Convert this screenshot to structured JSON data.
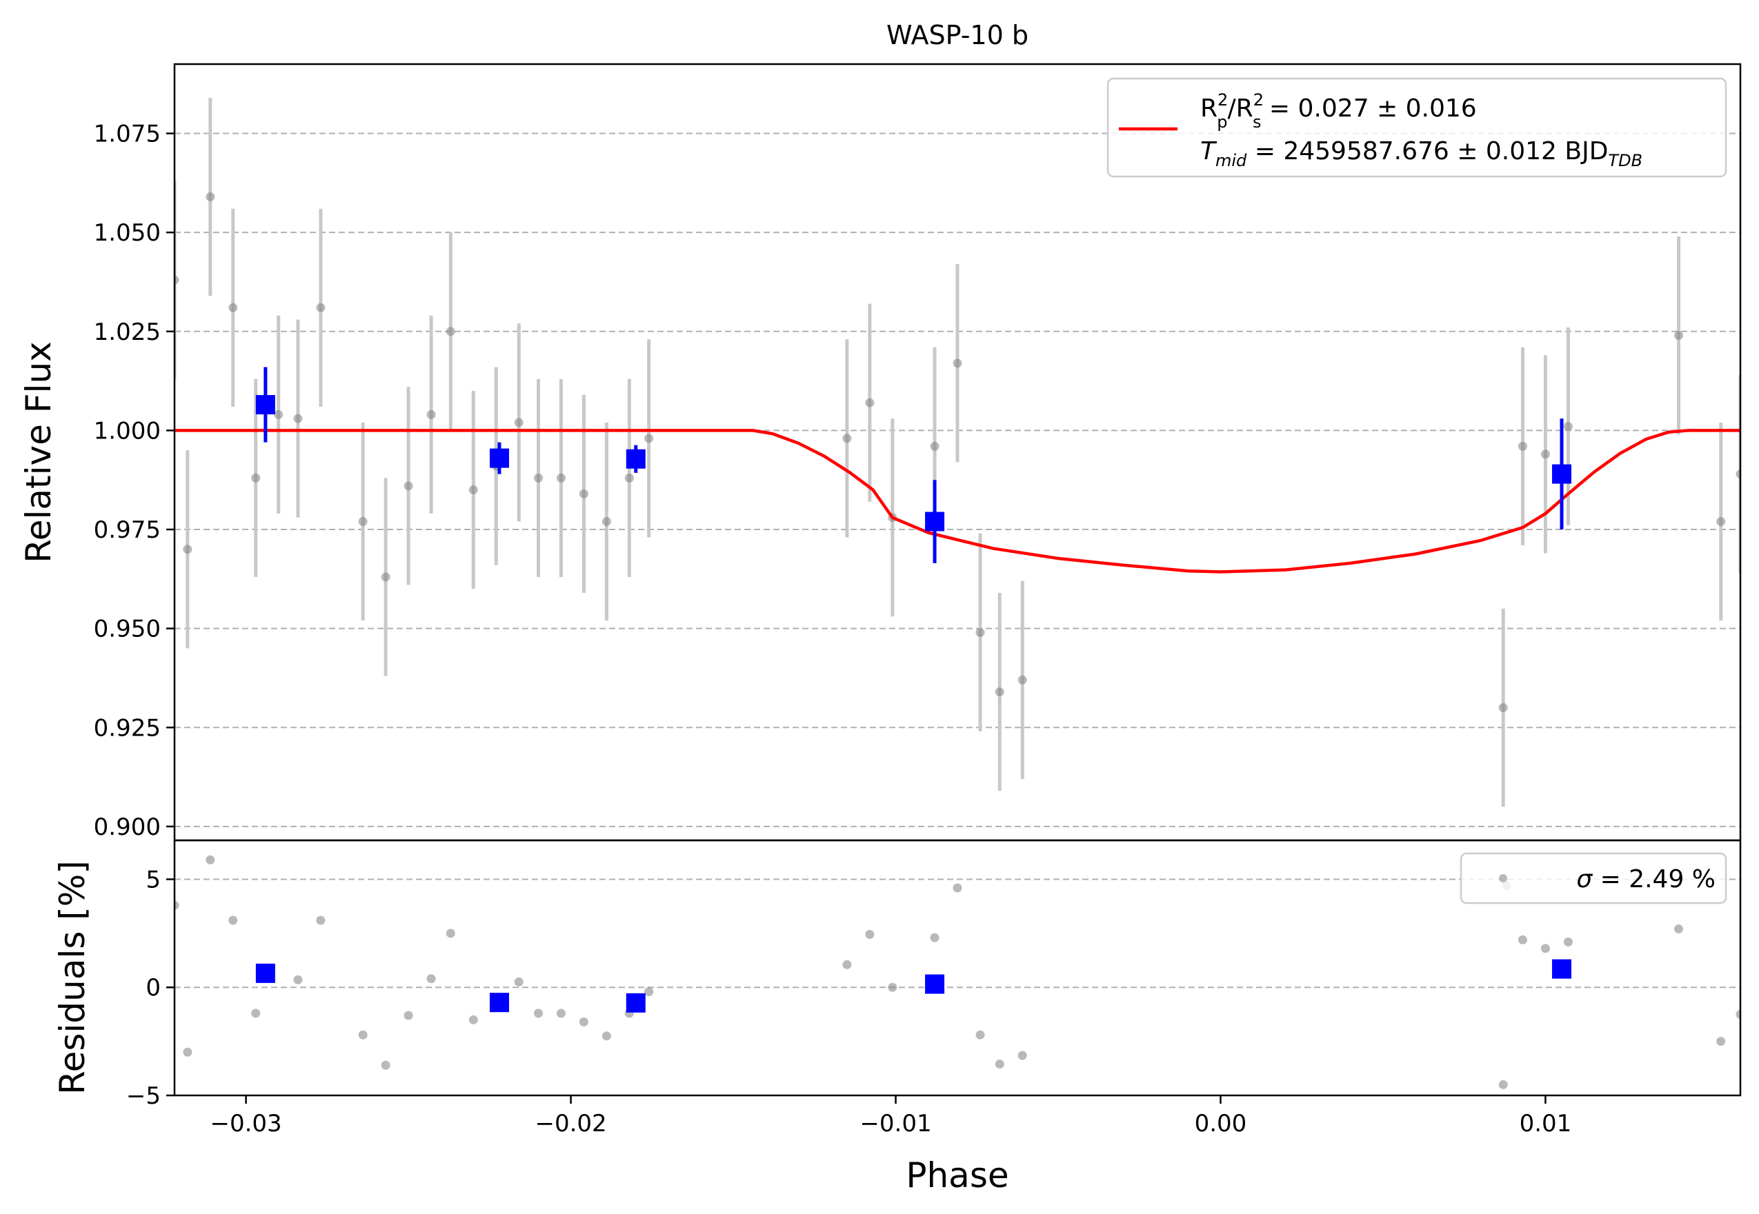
{
  "chart_data": [
    {
      "type": "scatter",
      "panel": "flux",
      "title": "WASP-10 b",
      "xlabel": "Phase",
      "ylabel": "Relative Flux",
      "xlim": [
        -0.0322,
        0.016
      ],
      "ylim": [
        0.8965,
        1.0925
      ],
      "xticks": [
        -0.03,
        -0.02,
        -0.01,
        0.0,
        0.01
      ],
      "xtick_labels": [
        "−0.03",
        "−0.02",
        "−0.01",
        "0.00",
        "0.01"
      ],
      "yticks": [
        0.9,
        0.925,
        0.95,
        0.975,
        1.0,
        1.025,
        1.05,
        1.075
      ],
      "ytick_labels": [
        "0.900",
        "0.925",
        "0.950",
        "0.975",
        "1.000",
        "1.025",
        "1.050",
        "1.075"
      ],
      "grid": "horizontal-dashed",
      "legend_placement": "top-right",
      "legend": {
        "line1": {
          "base": "R",
          "sup1": "2",
          "sub1": "p",
          "sep": "/R",
          "sup2": "2",
          "sub2": "s",
          "value": " = 0.027 ± 0.016"
        },
        "line2": {
          "base": "T",
          "sub": "mid",
          "value": " = 2459587.676 ± 0.012 BJD",
          "unit_sub": "TDB"
        }
      },
      "colors": {
        "raw": "#808080",
        "raw_err": "#c8c8c8",
        "binned": "#0000ff",
        "model": "#ff0000",
        "grid": "#b0b0b0"
      },
      "raw": [
        {
          "x": -0.0322,
          "y": 1.038,
          "err": 0.025
        },
        {
          "x": -0.0318,
          "y": 0.97,
          "err": 0.025
        },
        {
          "x": -0.0311,
          "y": 1.059,
          "err": 0.025
        },
        {
          "x": -0.0304,
          "y": 1.031,
          "err": 0.025
        },
        {
          "x": -0.0297,
          "y": 0.988,
          "err": 0.025
        },
        {
          "x": -0.029,
          "y": 1.004,
          "err": 0.025
        },
        {
          "x": -0.0284,
          "y": 1.003,
          "err": 0.025
        },
        {
          "x": -0.0277,
          "y": 1.031,
          "err": 0.025
        },
        {
          "x": -0.0264,
          "y": 0.977,
          "err": 0.025
        },
        {
          "x": -0.0257,
          "y": 0.963,
          "err": 0.025
        },
        {
          "x": -0.025,
          "y": 0.986,
          "err": 0.025
        },
        {
          "x": -0.0243,
          "y": 1.004,
          "err": 0.025
        },
        {
          "x": -0.0237,
          "y": 1.025,
          "err": 0.025
        },
        {
          "x": -0.023,
          "y": 0.985,
          "err": 0.025
        },
        {
          "x": -0.0223,
          "y": 0.991,
          "err": 0.025
        },
        {
          "x": -0.0216,
          "y": 1.002,
          "err": 0.025
        },
        {
          "x": -0.021,
          "y": 0.988,
          "err": 0.025
        },
        {
          "x": -0.0203,
          "y": 0.988,
          "err": 0.025
        },
        {
          "x": -0.0196,
          "y": 0.984,
          "err": 0.025
        },
        {
          "x": -0.0189,
          "y": 0.977,
          "err": 0.025
        },
        {
          "x": -0.0182,
          "y": 0.988,
          "err": 0.025
        },
        {
          "x": -0.0176,
          "y": 0.998,
          "err": 0.025
        },
        {
          "x": -0.0115,
          "y": 0.998,
          "err": 0.025
        },
        {
          "x": -0.0108,
          "y": 1.007,
          "err": 0.025
        },
        {
          "x": -0.0101,
          "y": 0.978,
          "err": 0.025
        },
        {
          "x": -0.0088,
          "y": 0.996,
          "err": 0.025
        },
        {
          "x": -0.0081,
          "y": 1.017,
          "err": 0.025
        },
        {
          "x": -0.0074,
          "y": 0.949,
          "err": 0.025
        },
        {
          "x": -0.0068,
          "y": 0.934,
          "err": 0.025
        },
        {
          "x": -0.0061,
          "y": 0.937,
          "err": 0.025
        },
        {
          "x": 0.0087,
          "y": 0.93,
          "err": 0.025
        },
        {
          "x": 0.0093,
          "y": 0.996,
          "err": 0.025
        },
        {
          "x": 0.01,
          "y": 0.994,
          "err": 0.025
        },
        {
          "x": 0.0107,
          "y": 1.001,
          "err": 0.025
        },
        {
          "x": 0.0141,
          "y": 1.024,
          "err": 0.025
        },
        {
          "x": 0.0154,
          "y": 0.977,
          "err": 0.025
        },
        {
          "x": 0.016,
          "y": 0.989,
          "err": 0.025
        }
      ],
      "binned": [
        {
          "x": -0.0294,
          "y": 1.0065,
          "err": 0.0095
        },
        {
          "x": -0.0222,
          "y": 0.993,
          "err": 0.004
        },
        {
          "x": -0.018,
          "y": 0.9928,
          "err": 0.0035
        },
        {
          "x": -0.0088,
          "y": 0.977,
          "err": 0.0105
        },
        {
          "x": 0.0105,
          "y": 0.989,
          "err": 0.014
        }
      ],
      "model": {
        "name": "transit model",
        "x": [
          -0.0322,
          -0.0144,
          -0.0138,
          -0.013,
          -0.0122,
          -0.0114,
          -0.0107,
          -0.0101,
          -0.009,
          -0.007,
          -0.005,
          -0.003,
          -0.001,
          0.0,
          0.002,
          0.004,
          0.006,
          0.008,
          0.0093,
          0.01,
          0.0107,
          0.0115,
          0.0123,
          0.0131,
          0.0138,
          0.0144,
          0.016
        ],
        "y": [
          1.0,
          1.0,
          0.9992,
          0.9968,
          0.9935,
          0.9893,
          0.985,
          0.978,
          0.9742,
          0.9702,
          0.9677,
          0.966,
          0.9645,
          0.9643,
          0.9648,
          0.9665,
          0.9688,
          0.9722,
          0.9755,
          0.979,
          0.984,
          0.9895,
          0.9942,
          0.9978,
          0.9996,
          1.0,
          1.0
        ]
      }
    },
    {
      "type": "scatter",
      "panel": "residuals",
      "xlabel": "Phase",
      "ylabel": "Residuals [%]",
      "xlim": [
        -0.0322,
        0.016
      ],
      "ylim": [
        -5,
        6.8
      ],
      "yticks": [
        -5,
        0,
        5
      ],
      "ytick_labels": [
        "−5",
        "0",
        "5"
      ],
      "grid": "horizontal-dashed",
      "legend_placement": "top-right",
      "legend": {
        "sym": "σ",
        "value": " = 2.49 %"
      },
      "raw": [
        {
          "x": -0.0322,
          "y": 3.8
        },
        {
          "x": -0.0318,
          "y": -3.0
        },
        {
          "x": -0.0311,
          "y": 5.9
        },
        {
          "x": -0.0304,
          "y": 3.1
        },
        {
          "x": -0.0297,
          "y": -1.2
        },
        {
          "x": -0.0284,
          "y": 0.35
        },
        {
          "x": -0.0277,
          "y": 3.1
        },
        {
          "x": -0.0264,
          "y": -2.2
        },
        {
          "x": -0.0257,
          "y": -3.6
        },
        {
          "x": -0.025,
          "y": -1.3
        },
        {
          "x": -0.0243,
          "y": 0.4
        },
        {
          "x": -0.0237,
          "y": 2.5
        },
        {
          "x": -0.023,
          "y": -1.5
        },
        {
          "x": -0.0223,
          "y": -0.9
        },
        {
          "x": -0.0216,
          "y": 0.25
        },
        {
          "x": -0.021,
          "y": -1.2
        },
        {
          "x": -0.0203,
          "y": -1.2
        },
        {
          "x": -0.0196,
          "y": -1.6
        },
        {
          "x": -0.0189,
          "y": -2.25
        },
        {
          "x": -0.0182,
          "y": -1.2
        },
        {
          "x": -0.0176,
          "y": -0.2
        },
        {
          "x": -0.0115,
          "y": 1.05
        },
        {
          "x": -0.0108,
          "y": 2.45
        },
        {
          "x": -0.0101,
          "y": 0.0
        },
        {
          "x": -0.0088,
          "y": 2.3
        },
        {
          "x": -0.0081,
          "y": 4.6
        },
        {
          "x": -0.0074,
          "y": -2.2
        },
        {
          "x": -0.0068,
          "y": -3.55
        },
        {
          "x": -0.0061,
          "y": -3.15
        },
        {
          "x": 0.0087,
          "y": -4.5
        },
        {
          "x": 0.0088,
          "y": 4.7
        },
        {
          "x": 0.0093,
          "y": 2.2
        },
        {
          "x": 0.01,
          "y": 1.8
        },
        {
          "x": 0.0107,
          "y": 2.1
        },
        {
          "x": 0.0141,
          "y": 2.7
        },
        {
          "x": 0.0154,
          "y": -2.5
        },
        {
          "x": 0.016,
          "y": -1.25
        }
      ],
      "binned": [
        {
          "x": -0.0294,
          "y": 0.65
        },
        {
          "x": -0.0222,
          "y": -0.7
        },
        {
          "x": -0.018,
          "y": -0.72
        },
        {
          "x": -0.0088,
          "y": 0.15
        },
        {
          "x": 0.0105,
          "y": 0.85
        }
      ]
    }
  ]
}
